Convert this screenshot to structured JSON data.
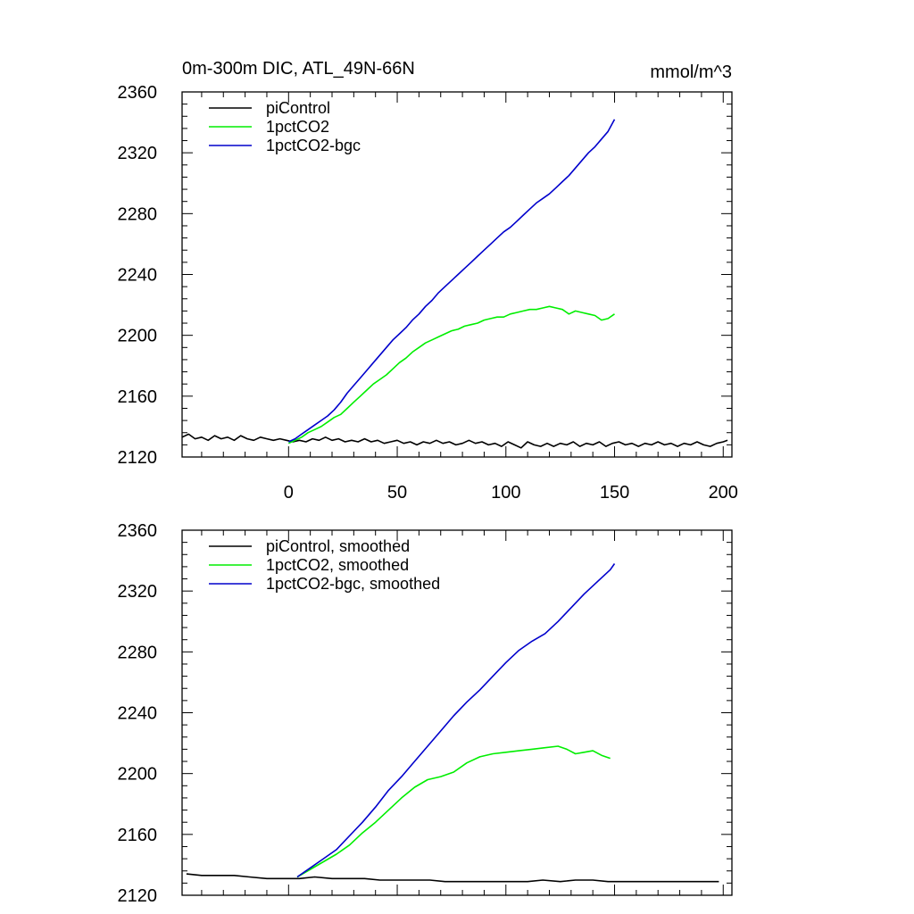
{
  "chart_data": [
    {
      "type": "line",
      "title": "0m-300m DIC, ATL_49N-66N",
      "units": "mmol/m^3",
      "xlim": [
        -49,
        204
      ],
      "ylim": [
        2120,
        2360
      ],
      "x_ticks": [
        0,
        50,
        100,
        150,
        200
      ],
      "y_ticks": [
        2120,
        2160,
        2200,
        2240,
        2280,
        2320,
        2360
      ],
      "legend_position": "top-left",
      "series": [
        {
          "name": "piControl",
          "color": "#000000",
          "points": [
            [
              -49,
              2133
            ],
            [
              -46,
              2135
            ],
            [
              -43,
              2132
            ],
            [
              -40,
              2133
            ],
            [
              -37,
              2131
            ],
            [
              -34,
              2134
            ],
            [
              -31,
              2132
            ],
            [
              -28,
              2133
            ],
            [
              -25,
              2131
            ],
            [
              -22,
              2134
            ],
            [
              -19,
              2132
            ],
            [
              -16,
              2131
            ],
            [
              -13,
              2133
            ],
            [
              -10,
              2132
            ],
            [
              -7,
              2131
            ],
            [
              -4,
              2132
            ],
            [
              -1,
              2131
            ],
            [
              2,
              2130
            ],
            [
              5,
              2131
            ],
            [
              8,
              2130
            ],
            [
              11,
              2132
            ],
            [
              14,
              2131
            ],
            [
              17,
              2133
            ],
            [
              20,
              2131
            ],
            [
              23,
              2132
            ],
            [
              26,
              2130
            ],
            [
              29,
              2131
            ],
            [
              32,
              2130
            ],
            [
              35,
              2132
            ],
            [
              38,
              2130
            ],
            [
              41,
              2131
            ],
            [
              44,
              2129
            ],
            [
              47,
              2130
            ],
            [
              50,
              2131
            ],
            [
              53,
              2129
            ],
            [
              56,
              2130
            ],
            [
              59,
              2128
            ],
            [
              62,
              2130
            ],
            [
              65,
              2129
            ],
            [
              68,
              2131
            ],
            [
              71,
              2129
            ],
            [
              74,
              2130
            ],
            [
              77,
              2128
            ],
            [
              80,
              2129
            ],
            [
              83,
              2131
            ],
            [
              86,
              2129
            ],
            [
              89,
              2130
            ],
            [
              92,
              2128
            ],
            [
              95,
              2129
            ],
            [
              98,
              2127
            ],
            [
              101,
              2130
            ],
            [
              104,
              2128
            ],
            [
              107,
              2126
            ],
            [
              110,
              2130
            ],
            [
              113,
              2128
            ],
            [
              116,
              2127
            ],
            [
              119,
              2129
            ],
            [
              122,
              2127
            ],
            [
              125,
              2129
            ],
            [
              128,
              2128
            ],
            [
              131,
              2130
            ],
            [
              134,
              2127
            ],
            [
              137,
              2129
            ],
            [
              140,
              2128
            ],
            [
              143,
              2130
            ],
            [
              146,
              2127
            ],
            [
              149,
              2129
            ],
            [
              152,
              2130
            ],
            [
              155,
              2128
            ],
            [
              158,
              2129
            ],
            [
              161,
              2127
            ],
            [
              164,
              2129
            ],
            [
              167,
              2128
            ],
            [
              170,
              2130
            ],
            [
              173,
              2128
            ],
            [
              176,
              2129
            ],
            [
              179,
              2127
            ],
            [
              182,
              2129
            ],
            [
              185,
              2128
            ],
            [
              188,
              2130
            ],
            [
              191,
              2128
            ],
            [
              194,
              2127
            ],
            [
              197,
              2129
            ],
            [
              200,
              2130
            ],
            [
              202,
              2131
            ]
          ]
        },
        {
          "name": "1pctCO2",
          "color": "#00ee00",
          "points": [
            [
              0,
              2129
            ],
            [
              3,
              2131
            ],
            [
              6,
              2133
            ],
            [
              9,
              2136
            ],
            [
              12,
              2138
            ],
            [
              15,
              2140
            ],
            [
              18,
              2143
            ],
            [
              21,
              2146
            ],
            [
              24,
              2148
            ],
            [
              27,
              2152
            ],
            [
              30,
              2156
            ],
            [
              33,
              2160
            ],
            [
              36,
              2164
            ],
            [
              39,
              2168
            ],
            [
              42,
              2171
            ],
            [
              45,
              2174
            ],
            [
              48,
              2178
            ],
            [
              51,
              2182
            ],
            [
              54,
              2185
            ],
            [
              57,
              2189
            ],
            [
              60,
              2192
            ],
            [
              63,
              2195
            ],
            [
              66,
              2197
            ],
            [
              69,
              2199
            ],
            [
              72,
              2201
            ],
            [
              75,
              2203
            ],
            [
              78,
              2204
            ],
            [
              81,
              2206
            ],
            [
              84,
              2207
            ],
            [
              87,
              2208
            ],
            [
              90,
              2210
            ],
            [
              93,
              2211
            ],
            [
              96,
              2212
            ],
            [
              99,
              2212
            ],
            [
              102,
              2214
            ],
            [
              105,
              2215
            ],
            [
              108,
              2216
            ],
            [
              111,
              2217
            ],
            [
              114,
              2217
            ],
            [
              117,
              2218
            ],
            [
              120,
              2219
            ],
            [
              123,
              2218
            ],
            [
              126,
              2217
            ],
            [
              129,
              2214
            ],
            [
              132,
              2216
            ],
            [
              135,
              2215
            ],
            [
              138,
              2214
            ],
            [
              141,
              2213
            ],
            [
              144,
              2210
            ],
            [
              147,
              2211
            ],
            [
              150,
              2214
            ]
          ]
        },
        {
          "name": "1pctCO2-bgc",
          "color": "#0000cc",
          "points": [
            [
              0,
              2130
            ],
            [
              3,
              2132
            ],
            [
              6,
              2135
            ],
            [
              9,
              2138
            ],
            [
              12,
              2141
            ],
            [
              15,
              2144
            ],
            [
              18,
              2147
            ],
            [
              21,
              2151
            ],
            [
              24,
              2156
            ],
            [
              27,
              2162
            ],
            [
              30,
              2167
            ],
            [
              33,
              2172
            ],
            [
              36,
              2177
            ],
            [
              39,
              2182
            ],
            [
              42,
              2187
            ],
            [
              45,
              2192
            ],
            [
              48,
              2197
            ],
            [
              51,
              2201
            ],
            [
              54,
              2205
            ],
            [
              57,
              2210
            ],
            [
              60,
              2214
            ],
            [
              63,
              2219
            ],
            [
              66,
              2223
            ],
            [
              69,
              2228
            ],
            [
              72,
              2232
            ],
            [
              75,
              2236
            ],
            [
              78,
              2240
            ],
            [
              81,
              2244
            ],
            [
              84,
              2248
            ],
            [
              87,
              2252
            ],
            [
              90,
              2256
            ],
            [
              93,
              2260
            ],
            [
              96,
              2264
            ],
            [
              99,
              2268
            ],
            [
              102,
              2271
            ],
            [
              105,
              2275
            ],
            [
              108,
              2279
            ],
            [
              111,
              2283
            ],
            [
              114,
              2287
            ],
            [
              117,
              2290
            ],
            [
              120,
              2293
            ],
            [
              123,
              2297
            ],
            [
              126,
              2301
            ],
            [
              129,
              2305
            ],
            [
              132,
              2310
            ],
            [
              135,
              2315
            ],
            [
              138,
              2320
            ],
            [
              141,
              2324
            ],
            [
              144,
              2329
            ],
            [
              147,
              2334
            ],
            [
              150,
              2342
            ]
          ]
        }
      ]
    },
    {
      "type": "line",
      "xlim": [
        -49,
        204
      ],
      "ylim": [
        2120,
        2360
      ],
      "y_ticks": [
        2120,
        2160,
        2200,
        2240,
        2280,
        2320,
        2360
      ],
      "legend_position": "top-left",
      "series": [
        {
          "name": "piControl, smoothed",
          "color": "#000000",
          "points": [
            [
              -47,
              2134
            ],
            [
              -40,
              2133
            ],
            [
              -32,
              2133
            ],
            [
              -25,
              2133
            ],
            [
              -18,
              2132
            ],
            [
              -10,
              2131
            ],
            [
              -2,
              2131
            ],
            [
              5,
              2131
            ],
            [
              12,
              2132
            ],
            [
              20,
              2131
            ],
            [
              27,
              2131
            ],
            [
              35,
              2131
            ],
            [
              42,
              2130
            ],
            [
              50,
              2130
            ],
            [
              57,
              2130
            ],
            [
              65,
              2130
            ],
            [
              72,
              2129
            ],
            [
              80,
              2129
            ],
            [
              87,
              2129
            ],
            [
              95,
              2129
            ],
            [
              102,
              2129
            ],
            [
              110,
              2129
            ],
            [
              117,
              2130
            ],
            [
              125,
              2129
            ],
            [
              132,
              2130
            ],
            [
              140,
              2130
            ],
            [
              147,
              2129
            ],
            [
              155,
              2129
            ],
            [
              162,
              2129
            ],
            [
              170,
              2129
            ],
            [
              177,
              2129
            ],
            [
              185,
              2129
            ],
            [
              192,
              2129
            ],
            [
              198,
              2129
            ]
          ]
        },
        {
          "name": "1pctCO2, smoothed",
          "color": "#00ee00",
          "points": [
            [
              4,
              2132
            ],
            [
              10,
              2137
            ],
            [
              16,
              2142
            ],
            [
              22,
              2147
            ],
            [
              28,
              2153
            ],
            [
              34,
              2161
            ],
            [
              40,
              2168
            ],
            [
              46,
              2176
            ],
            [
              52,
              2184
            ],
            [
              58,
              2191
            ],
            [
              64,
              2196
            ],
            [
              70,
              2198
            ],
            [
              76,
              2201
            ],
            [
              82,
              2207
            ],
            [
              88,
              2211
            ],
            [
              94,
              2213
            ],
            [
              100,
              2214
            ],
            [
              106,
              2215
            ],
            [
              112,
              2216
            ],
            [
              118,
              2217
            ],
            [
              124,
              2218
            ],
            [
              128,
              2216
            ],
            [
              132,
              2213
            ],
            [
              136,
              2214
            ],
            [
              140,
              2215
            ],
            [
              144,
              2212
            ],
            [
              148,
              2210
            ]
          ]
        },
        {
          "name": "1pctCO2-bgc, smoothed",
          "color": "#0000cc",
          "points": [
            [
              4,
              2132
            ],
            [
              10,
              2138
            ],
            [
              16,
              2144
            ],
            [
              22,
              2150
            ],
            [
              28,
              2159
            ],
            [
              34,
              2168
            ],
            [
              40,
              2178
            ],
            [
              46,
              2189
            ],
            [
              52,
              2198
            ],
            [
              58,
              2208
            ],
            [
              64,
              2218
            ],
            [
              70,
              2228
            ],
            [
              76,
              2238
            ],
            [
              82,
              2247
            ],
            [
              88,
              2255
            ],
            [
              94,
              2264
            ],
            [
              100,
              2273
            ],
            [
              106,
              2281
            ],
            [
              112,
              2287
            ],
            [
              118,
              2292
            ],
            [
              124,
              2300
            ],
            [
              130,
              2309
            ],
            [
              136,
              2318
            ],
            [
              142,
              2326
            ],
            [
              148,
              2334
            ],
            [
              150,
              2338
            ]
          ]
        }
      ]
    }
  ]
}
